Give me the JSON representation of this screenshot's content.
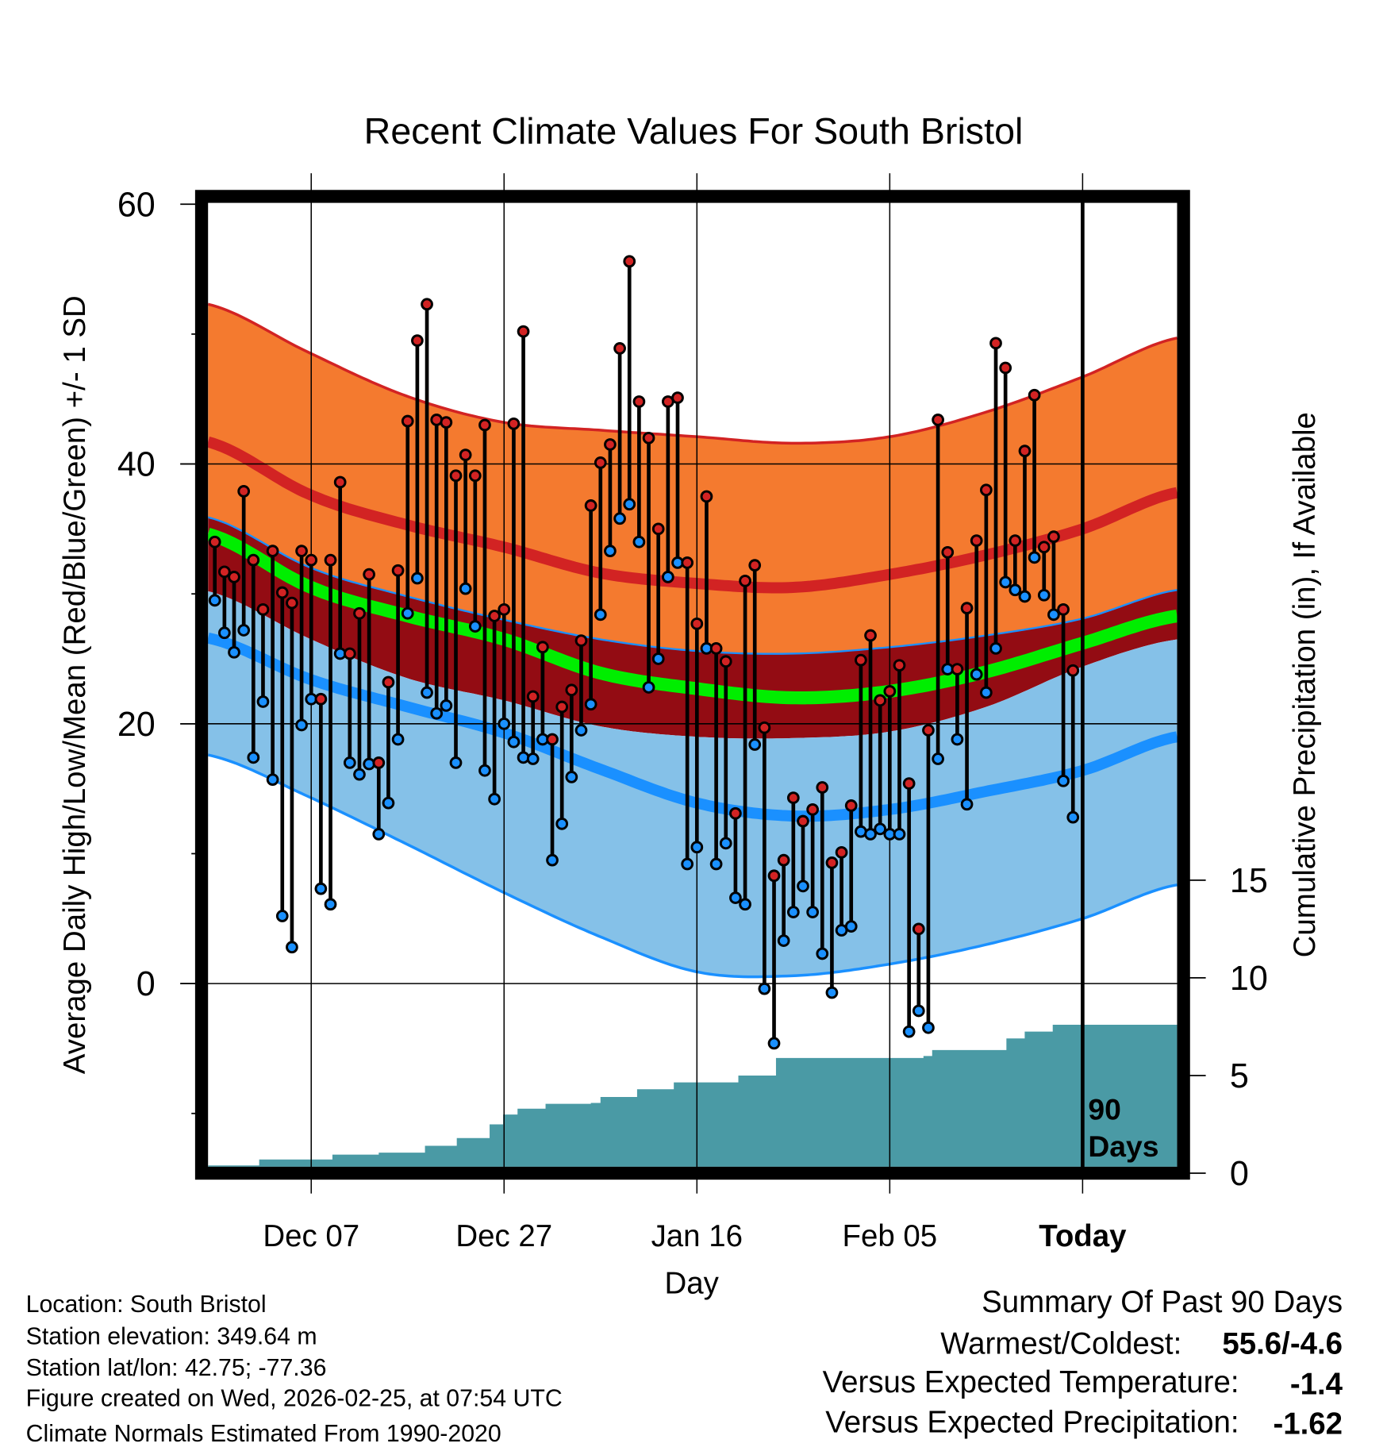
{
  "chart_data": {
    "type": "line",
    "title": "Recent Climate Values For South Bristol",
    "xlabel": "Day",
    "ylabel": "Average Daily High/Low/Mean (Red/Blue/Green) +/- 1 SD",
    "y2label": "Cumulative Precipitation (in), If Available",
    "xlim": [
      -0.7,
      99.8
    ],
    "ylim": [
      -14.6,
      60.6
    ],
    "y2lim": [
      0,
      50
    ],
    "grid": true,
    "x_ticks": [
      {
        "day": 10,
        "label": "Dec 07"
      },
      {
        "day": 30,
        "label": "Dec 27"
      },
      {
        "day": 50,
        "label": "Jan 16"
      },
      {
        "day": 70,
        "label": "Feb 05"
      },
      {
        "day": 90,
        "label": "Today"
      }
    ],
    "y_ticks": [
      "0",
      "20",
      "40",
      "60"
    ],
    "y_minor_ticks": [
      -10,
      10,
      30,
      50
    ],
    "y2_ticks": [
      "0",
      "5",
      "10",
      "15"
    ],
    "today_annotation": [
      "90",
      "Days"
    ],
    "colors": {
      "high_sd_band": "#f47a2f",
      "high_mean": "#d22323",
      "low_plus_band": "#930c13",
      "mean": "#00ee00",
      "low_sd_band": "#85c1e8",
      "low_mean": "#1a90ff",
      "precip": "#4a9aa5",
      "high_marker": "#d22323",
      "low_marker": "#1a90ff"
    },
    "daily": {
      "high": [
        34.0,
        31.7,
        31.3,
        37.9,
        32.6,
        28.8,
        33.3,
        30.1,
        29.3,
        33.3,
        32.6,
        21.9,
        32.6,
        38.6,
        25.4,
        28.5,
        31.5,
        17.0,
        23.2,
        31.8,
        43.3,
        49.5,
        52.3,
        43.4,
        43.2,
        39.1,
        40.7,
        39.1,
        43.0,
        28.3,
        28.8,
        43.1,
        50.2,
        22.1,
        25.9,
        18.8,
        21.3,
        22.6,
        26.4,
        36.8,
        40.1,
        41.5,
        48.9,
        55.6,
        44.8,
        42.0,
        35.0,
        44.8,
        45.1,
        32.4,
        27.7,
        37.5,
        25.8,
        24.8,
        13.1,
        31.0,
        32.2,
        19.7,
        8.3,
        9.5,
        14.3,
        12.5,
        13.4,
        15.1,
        9.3,
        10.1,
        13.7,
        24.9,
        26.8,
        21.8,
        22.5,
        24.5,
        15.4,
        4.2,
        19.5,
        43.4,
        33.2,
        24.2,
        28.9,
        34.1,
        38.0,
        49.3,
        47.4,
        34.1,
        41.0,
        45.3,
        33.6,
        34.4,
        28.8,
        24.1
      ],
      "low": [
        29.5,
        27.0,
        25.5,
        27.2,
        17.4,
        21.7,
        15.7,
        5.2,
        2.8,
        19.9,
        21.9,
        7.3,
        6.1,
        25.4,
        17.0,
        16.1,
        16.9,
        11.5,
        13.9,
        18.8,
        28.5,
        31.2,
        22.4,
        20.8,
        21.4,
        17.0,
        30.4,
        27.5,
        16.4,
        14.2,
        20.0,
        18.6,
        17.4,
        17.3,
        18.8,
        9.5,
        12.3,
        15.9,
        19.5,
        21.5,
        28.4,
        33.3,
        35.8,
        36.9,
        34.0,
        22.8,
        25.0,
        31.3,
        32.4,
        9.2,
        10.5,
        25.8,
        9.2,
        10.8,
        6.6,
        6.1,
        18.4,
        -0.4,
        -4.6,
        3.3,
        5.5,
        7.5,
        5.5,
        2.3,
        -0.7,
        4.1,
        4.4,
        11.7,
        11.5,
        11.9,
        11.5,
        11.5,
        -3.7,
        -2.1,
        -3.4,
        17.3,
        24.2,
        18.8,
        13.8,
        23.8,
        22.4,
        25.8,
        30.9,
        30.3,
        29.8,
        32.8,
        29.9,
        28.4,
        15.6,
        12.8
      ]
    },
    "normals": {
      "days": [
        -0.7,
        10,
        20,
        30,
        40,
        50,
        60,
        70,
        80,
        90,
        99.8
      ],
      "high_plus_sd": [
        52.3,
        48.5,
        45.2,
        43.2,
        42.6,
        42.1,
        41.6,
        42.1,
        44.0,
        46.7,
        49.7
      ],
      "high_mean": [
        41.7,
        37.6,
        35.3,
        33.6,
        31.6,
        30.8,
        30.5,
        31.5,
        33.0,
        35.0,
        37.8
      ],
      "high_minus_sd": [
        35.9,
        32.0,
        29.8,
        28.0,
        26.5,
        25.6,
        25.4,
        25.9,
        26.8,
        28.1,
        30.3
      ],
      "mean": [
        34.6,
        30.5,
        28.3,
        26.5,
        23.9,
        22.7,
        22.0,
        22.5,
        24.0,
        26.2,
        28.3
      ],
      "low_plus_sd": [
        30.2,
        26.5,
        23.5,
        21.8,
        19.8,
        19.0,
        18.9,
        19.4,
        21.3,
        24.4,
        26.5
      ],
      "low_mean": [
        26.6,
        23.4,
        21.3,
        19.3,
        16.5,
        13.9,
        12.9,
        13.4,
        14.8,
        16.4,
        19.0
      ],
      "low_minus_sd": [
        17.6,
        14.3,
        10.7,
        7.0,
        3.6,
        0.9,
        0.6,
        1.5,
        3.0,
        5.0,
        7.6
      ]
    },
    "precip_cumulative": {
      "days": [
        -0.7,
        4.6,
        12.2,
        17.0,
        21.8,
        25.1,
        28.5,
        29.9,
        31.4,
        34.3,
        39.0,
        40.0,
        43.8,
        47.6,
        54.3,
        58.2,
        73.5,
        74.4,
        82.1,
        84.0,
        86.9,
        99.8
      ],
      "values": [
        0.4,
        0.7,
        0.95,
        1.05,
        1.4,
        1.8,
        2.5,
        3.0,
        3.3,
        3.55,
        3.6,
        3.9,
        4.3,
        4.65,
        5.0,
        5.9,
        6.0,
        6.3,
        6.9,
        7.25,
        7.6,
        7.6
      ]
    }
  },
  "info": {
    "location": "Location: South Bristol",
    "elevation": "Station elevation: 349.64 m",
    "latlon": "Station lat/lon: 42.75; -77.36",
    "created": "Figure created on Wed, 2026-02-25, at 07:54 UTC",
    "normals": "Climate Normals Estimated From 1990-2020"
  },
  "summary": {
    "title": "Summary Of Past 90 Days",
    "warmest_coldest_label": "Warmest/Coldest:",
    "warmest_coldest_value": "55.6/-4.6",
    "temp_label": "Versus Expected Temperature:",
    "temp_value": "-1.4",
    "temp_color": "#1a90ff",
    "precip_label": "Versus Expected Precipitation:",
    "precip_value": "-1.62",
    "precip_color": "#a0522d"
  }
}
